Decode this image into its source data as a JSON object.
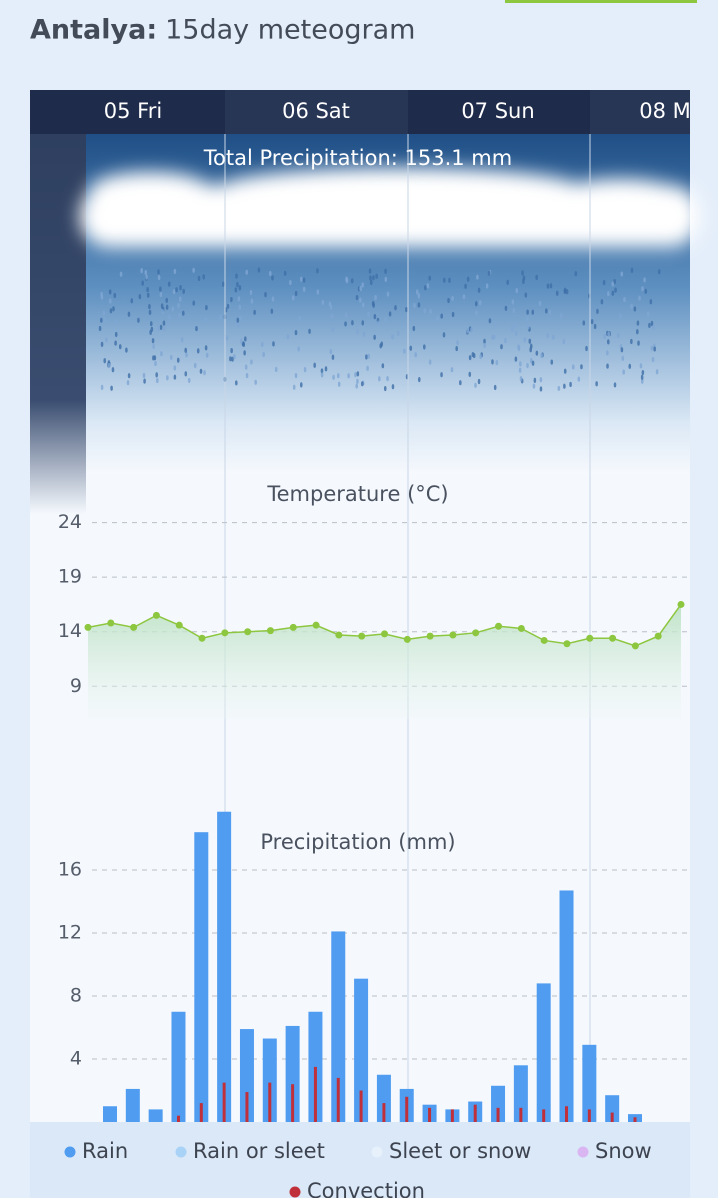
{
  "header": {
    "city": "Antalya:",
    "title": "15day meteogram"
  },
  "days": [
    "05 Fri",
    "06 Sat",
    "07 Sun",
    "08 M"
  ],
  "total_precipitation": "Total Precipitation: 153.1 mm",
  "chart_data": [
    {
      "type": "line",
      "title": "Temperature (°C)",
      "series": [
        {
          "name": "Temperature",
          "color": "#8dc63f",
          "values": [
            14.4,
            14.8,
            14.4,
            15.5,
            14.6,
            13.4,
            13.9,
            14.0,
            14.1,
            14.4,
            14.6,
            13.7,
            13.6,
            13.8,
            13.3,
            13.6,
            13.7,
            13.9,
            14.5,
            14.3,
            13.2,
            12.9,
            13.4,
            13.4,
            12.7,
            13.6,
            16.5
          ]
        }
      ],
      "ylim": [
        6,
        28
      ],
      "yticks": [
        24,
        19,
        14,
        9
      ],
      "grid": true
    },
    {
      "type": "bar",
      "title": "Precipitation (mm)",
      "series": [
        {
          "name": "Rain",
          "color": "#4f9cf0",
          "values": [
            1.0,
            2.1,
            0.8,
            7.0,
            18.4,
            19.7,
            5.9,
            5.3,
            6.1,
            7.0,
            12.1,
            9.1,
            3.0,
            2.1,
            1.1,
            0.8,
            1.3,
            2.3,
            3.6,
            8.8,
            14.7,
            4.9,
            1.7,
            0.5
          ]
        },
        {
          "name": "Convection",
          "color": "#c0303a",
          "values": [
            null,
            null,
            null,
            0.4,
            1.2,
            2.5,
            1.9,
            2.5,
            2.4,
            3.5,
            2.8,
            2.0,
            1.2,
            1.6,
            0.9,
            0.8,
            1.1,
            0.9,
            0.9,
            0.8,
            1.0,
            0.8,
            0.6,
            0.3
          ]
        }
      ],
      "legend_entries": [
        {
          "name": "Rain or sleet",
          "color": "#a9d2f7"
        },
        {
          "name": "Sleet or snow",
          "color": "#e6f1fc"
        },
        {
          "name": "Snow",
          "color": "#d9b6f2"
        }
      ],
      "ylim": [
        0,
        20
      ],
      "yticks": [
        16,
        12,
        8,
        4
      ],
      "grid": true
    }
  ]
}
